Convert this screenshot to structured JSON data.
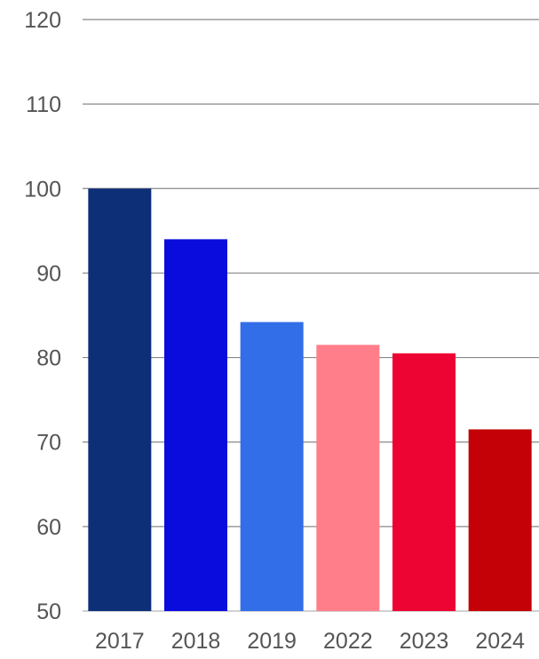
{
  "chart_data": {
    "type": "bar",
    "categories": [
      "2017",
      "2018",
      "2019",
      "2022",
      "2023",
      "2024"
    ],
    "values": [
      100,
      94,
      84.2,
      81.5,
      80.5,
      71.5
    ],
    "colors": [
      "#0d2f78",
      "#0a0bdd",
      "#326ee8",
      "#ff7e8a",
      "#ee0432",
      "#c30106"
    ],
    "ylim": [
      50,
      120
    ],
    "yticks": [
      50,
      60,
      70,
      80,
      90,
      100,
      110,
      120
    ],
    "grid": true,
    "title": "",
    "xlabel": "",
    "ylabel": ""
  }
}
